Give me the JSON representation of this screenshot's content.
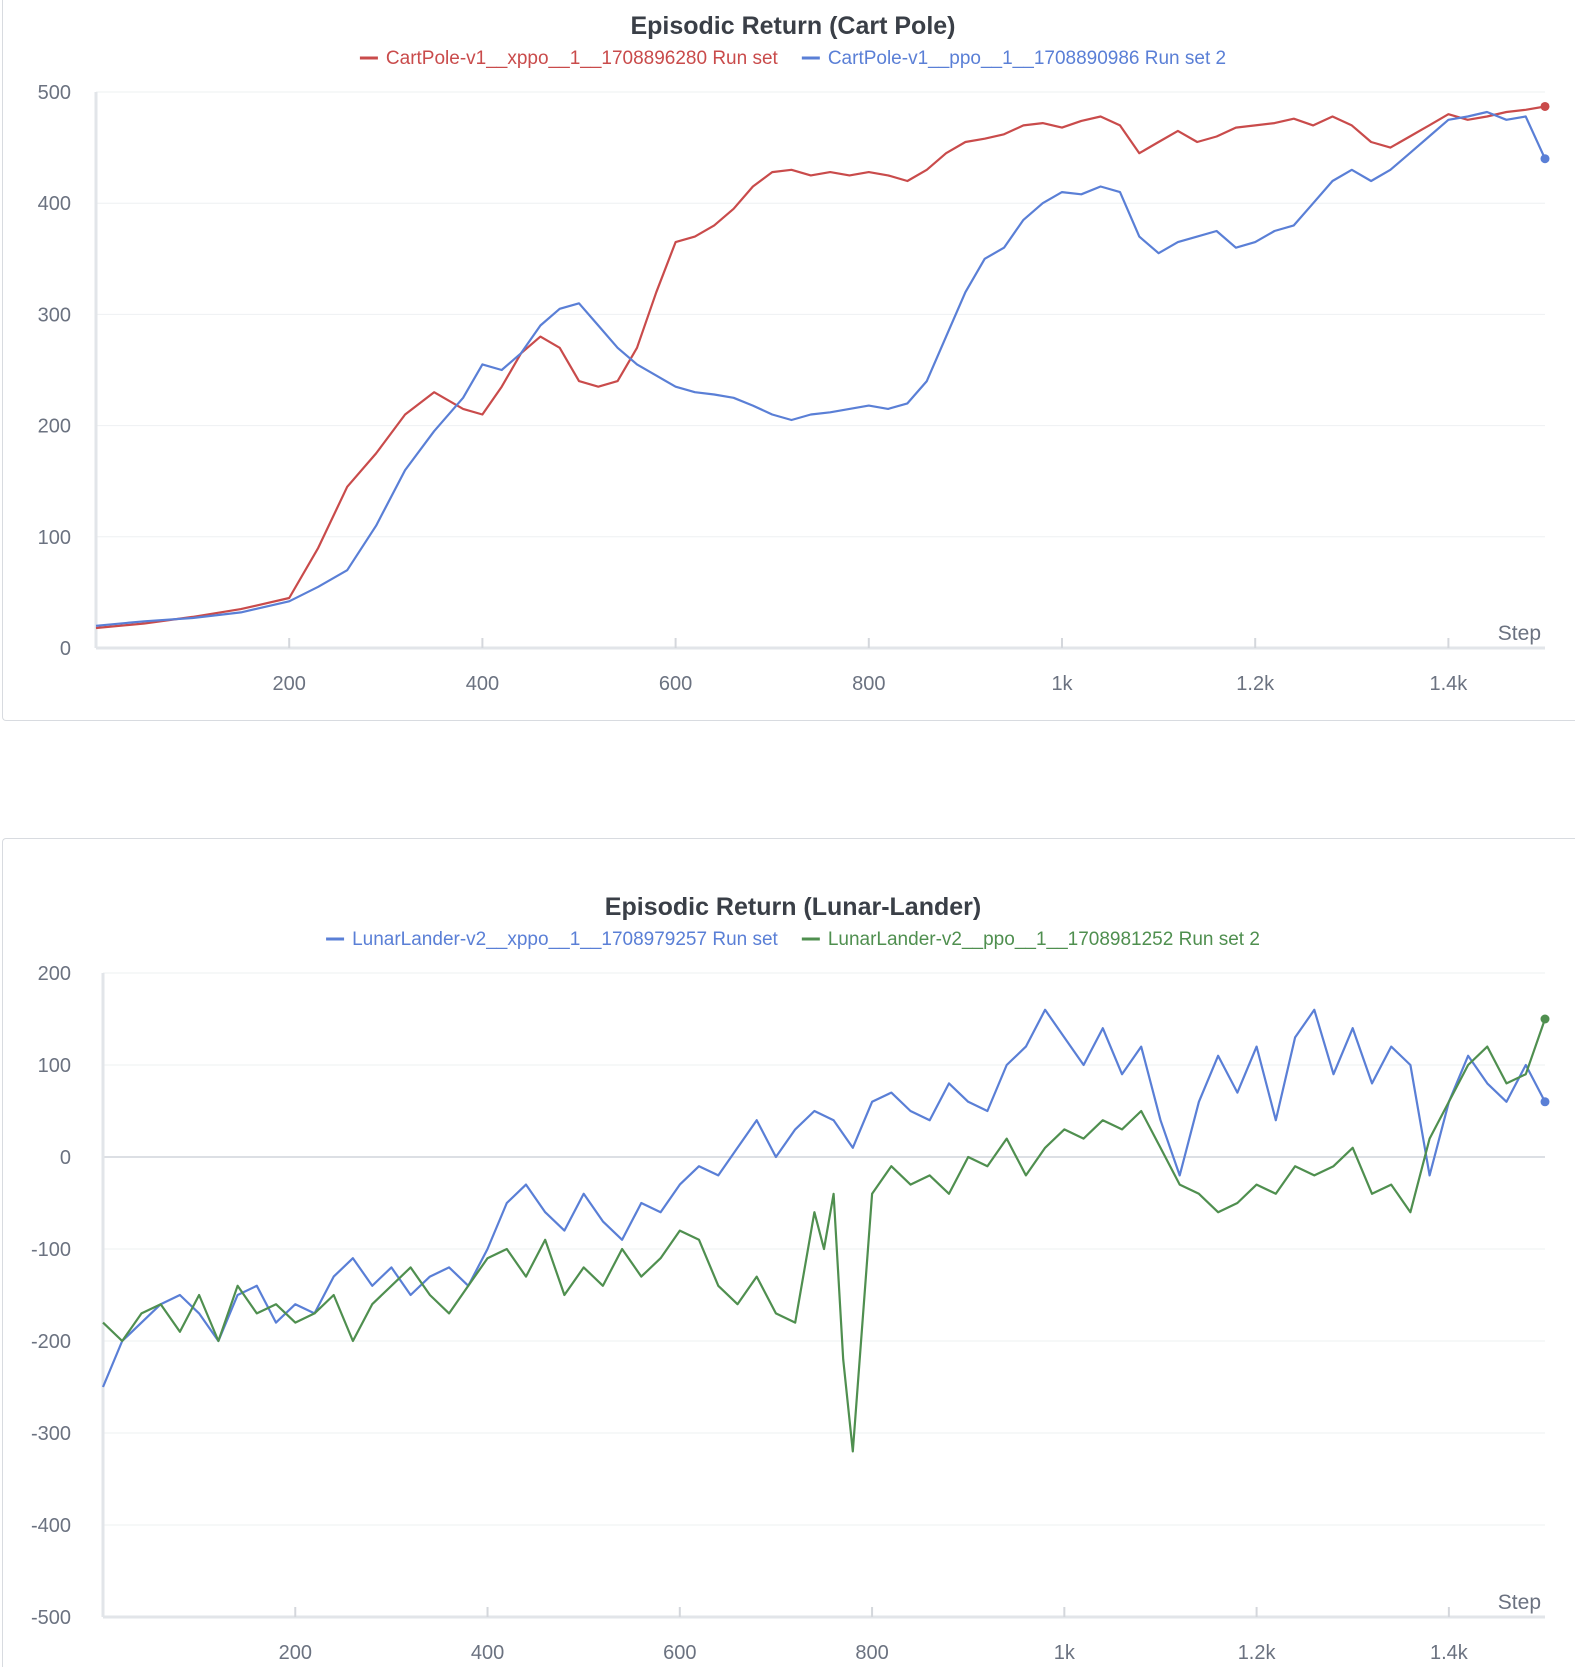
{
  "chart_data": [
    {
      "type": "line",
      "title": "Episodic Return (Cart Pole)",
      "xlabel": "Step",
      "ylabel": "",
      "xlim": [
        0,
        1500
      ],
      "ylim": [
        0,
        500
      ],
      "xticks": [
        200,
        400,
        600,
        800,
        1000,
        1200,
        1400
      ],
      "xtick_labels": [
        "200",
        "400",
        "600",
        "800",
        "1k",
        "1.2k",
        "1.4k"
      ],
      "yticks": [
        0,
        100,
        200,
        300,
        400,
        500
      ],
      "ytick_labels": [
        "0",
        "100",
        "200",
        "300",
        "400",
        "500"
      ],
      "grid": true,
      "legend_position": "top-center",
      "series": [
        {
          "name": "CartPole-v1__xppo__1__1708896280 Run set",
          "color": "#c94b4b",
          "x": [
            0,
            50,
            100,
            150,
            200,
            230,
            260,
            290,
            320,
            350,
            380,
            400,
            420,
            440,
            460,
            480,
            500,
            520,
            540,
            560,
            580,
            600,
            620,
            640,
            660,
            680,
            700,
            720,
            740,
            760,
            780,
            800,
            820,
            840,
            860,
            880,
            900,
            920,
            940,
            960,
            980,
            1000,
            1020,
            1040,
            1060,
            1080,
            1100,
            1120,
            1140,
            1160,
            1180,
            1200,
            1220,
            1240,
            1260,
            1280,
            1300,
            1320,
            1340,
            1360,
            1380,
            1400,
            1420,
            1440,
            1460,
            1480,
            1500
          ],
          "values": [
            18,
            22,
            28,
            35,
            45,
            90,
            145,
            175,
            210,
            230,
            215,
            210,
            235,
            265,
            280,
            270,
            240,
            235,
            240,
            270,
            320,
            365,
            370,
            380,
            395,
            415,
            428,
            430,
            425,
            428,
            425,
            428,
            425,
            420,
            430,
            445,
            455,
            458,
            462,
            470,
            472,
            468,
            474,
            478,
            470,
            445,
            455,
            465,
            455,
            460,
            468,
            470,
            472,
            476,
            470,
            478,
            470,
            455,
            450,
            460,
            470,
            480,
            475,
            478,
            482,
            484,
            487
          ]
        },
        {
          "name": "CartPole-v1__ppo__1__1708890986 Run set 2",
          "color": "#5a7fd6",
          "x": [
            0,
            50,
            100,
            150,
            200,
            230,
            260,
            290,
            320,
            350,
            380,
            400,
            420,
            440,
            460,
            480,
            500,
            520,
            540,
            560,
            580,
            600,
            620,
            640,
            660,
            680,
            700,
            720,
            740,
            760,
            780,
            800,
            820,
            840,
            860,
            880,
            900,
            920,
            940,
            960,
            980,
            1000,
            1020,
            1040,
            1060,
            1080,
            1100,
            1120,
            1140,
            1160,
            1180,
            1200,
            1220,
            1240,
            1260,
            1280,
            1300,
            1320,
            1340,
            1360,
            1380,
            1400,
            1420,
            1440,
            1460,
            1480,
            1500
          ],
          "values": [
            20,
            24,
            27,
            32,
            42,
            55,
            70,
            110,
            160,
            195,
            225,
            255,
            250,
            265,
            290,
            305,
            310,
            290,
            270,
            255,
            245,
            235,
            230,
            228,
            225,
            218,
            210,
            205,
            210,
            212,
            215,
            218,
            215,
            220,
            240,
            280,
            320,
            350,
            360,
            385,
            400,
            410,
            408,
            415,
            410,
            370,
            355,
            365,
            370,
            375,
            360,
            365,
            375,
            380,
            400,
            420,
            430,
            420,
            430,
            445,
            460,
            475,
            478,
            482,
            475,
            478,
            440
          ]
        }
      ]
    },
    {
      "type": "line",
      "title": "Episodic Return (Lunar-Lander)",
      "xlabel": "Step",
      "ylabel": "",
      "xlim": [
        0,
        1500
      ],
      "ylim": [
        -500,
        200
      ],
      "xticks": [
        200,
        400,
        600,
        800,
        1000,
        1200,
        1400
      ],
      "xtick_labels": [
        "200",
        "400",
        "600",
        "800",
        "1k",
        "1.2k",
        "1.4k"
      ],
      "yticks": [
        -500,
        -400,
        -300,
        -200,
        -100,
        0,
        100,
        200
      ],
      "ytick_labels": [
        "-500",
        "-400",
        "-300",
        "-200",
        "-100",
        "0",
        "100",
        "200"
      ],
      "grid": true,
      "legend_position": "top-center",
      "series": [
        {
          "name": "LunarLander-v2__xppo__1__1708979257 Run set",
          "color": "#5a7fd6",
          "x": [
            0,
            20,
            40,
            60,
            80,
            100,
            120,
            140,
            160,
            180,
            200,
            220,
            240,
            260,
            280,
            300,
            320,
            340,
            360,
            380,
            400,
            420,
            440,
            460,
            480,
            500,
            520,
            540,
            560,
            580,
            600,
            620,
            640,
            660,
            680,
            700,
            720,
            740,
            760,
            780,
            800,
            820,
            840,
            860,
            880,
            900,
            920,
            940,
            960,
            980,
            1000,
            1020,
            1040,
            1060,
            1080,
            1100,
            1120,
            1140,
            1160,
            1180,
            1200,
            1220,
            1240,
            1260,
            1280,
            1300,
            1320,
            1340,
            1360,
            1380,
            1400,
            1420,
            1440,
            1460,
            1480,
            1500
          ],
          "values": [
            -250,
            -200,
            -180,
            -160,
            -150,
            -170,
            -200,
            -150,
            -140,
            -180,
            -160,
            -170,
            -130,
            -110,
            -140,
            -120,
            -150,
            -130,
            -120,
            -140,
            -100,
            -50,
            -30,
            -60,
            -80,
            -40,
            -70,
            -90,
            -50,
            -60,
            -30,
            -10,
            -20,
            10,
            40,
            0,
            30,
            50,
            40,
            10,
            60,
            70,
            50,
            40,
            80,
            60,
            50,
            100,
            120,
            160,
            130,
            100,
            140,
            90,
            120,
            40,
            -20,
            60,
            110,
            70,
            120,
            40,
            130,
            160,
            90,
            140,
            80,
            120,
            100,
            -20,
            60,
            110,
            80,
            60,
            100,
            60
          ]
        },
        {
          "name": "LunarLander-v2__ppo__1__1708981252 Run set 2",
          "color": "#4f8f4f",
          "x": [
            0,
            20,
            40,
            60,
            80,
            100,
            120,
            140,
            160,
            180,
            200,
            220,
            240,
            260,
            280,
            300,
            320,
            340,
            360,
            380,
            400,
            420,
            440,
            460,
            480,
            500,
            520,
            540,
            560,
            580,
            600,
            620,
            640,
            660,
            680,
            700,
            720,
            740,
            750,
            760,
            770,
            780,
            800,
            820,
            840,
            860,
            880,
            900,
            920,
            940,
            960,
            980,
            1000,
            1020,
            1040,
            1060,
            1080,
            1100,
            1120,
            1140,
            1160,
            1180,
            1200,
            1220,
            1240,
            1260,
            1280,
            1300,
            1320,
            1340,
            1360,
            1380,
            1400,
            1420,
            1440,
            1460,
            1480,
            1500
          ],
          "values": [
            -180,
            -200,
            -170,
            -160,
            -190,
            -150,
            -200,
            -140,
            -170,
            -160,
            -180,
            -170,
            -150,
            -200,
            -160,
            -140,
            -120,
            -150,
            -170,
            -140,
            -110,
            -100,
            -130,
            -90,
            -150,
            -120,
            -140,
            -100,
            -130,
            -110,
            -80,
            -90,
            -140,
            -160,
            -130,
            -170,
            -180,
            -60,
            -100,
            -40,
            -220,
            -320,
            -40,
            -10,
            -30,
            -20,
            -40,
            0,
            -10,
            20,
            -20,
            10,
            30,
            20,
            40,
            30,
            50,
            10,
            -30,
            -40,
            -60,
            -50,
            -30,
            -40,
            -10,
            -20,
            -10,
            10,
            -40,
            -30,
            -60,
            20,
            60,
            100,
            120,
            80,
            90,
            150
          ]
        }
      ]
    }
  ]
}
